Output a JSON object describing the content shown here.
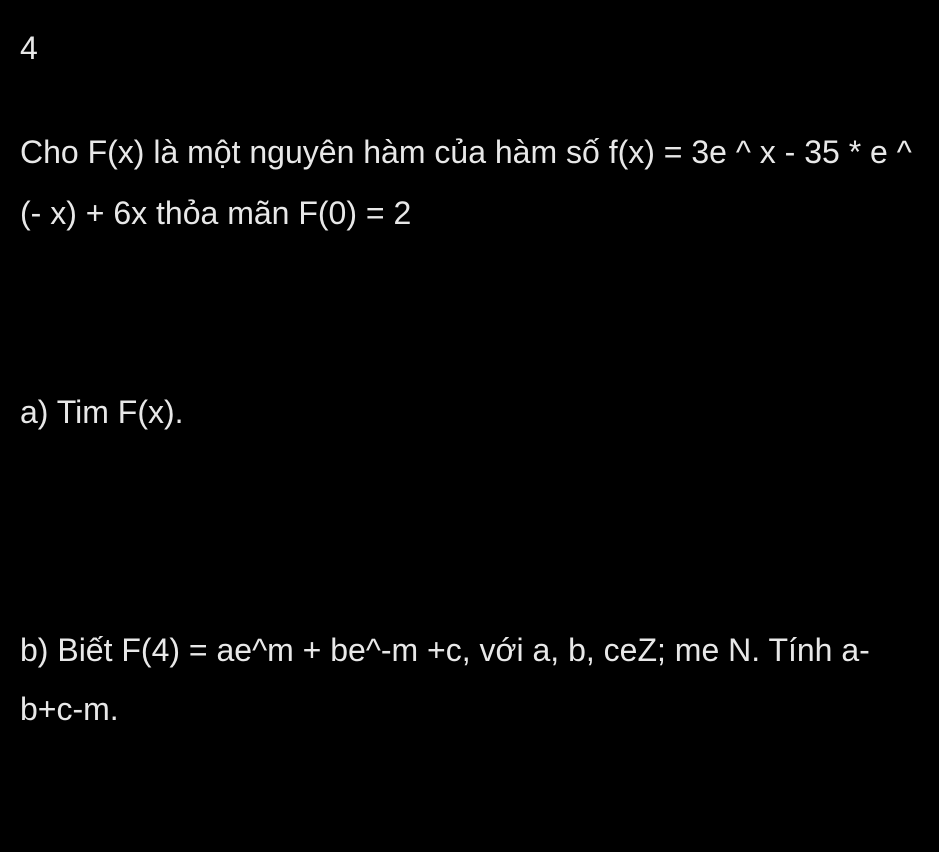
{
  "problem": {
    "number": "4",
    "statement": "Cho F(x) là một nguyên hàm của hàm số f(x) = 3e ^ x - 35 * e ^ (- x) + 6x thỏa mãn F(0) = 2",
    "part_a": "a) Tim F(x).",
    "part_b": "b) Biết F(4) = ae^m + be^-m +c, với a, b, ceZ; me N. Tính a-b+c-m."
  },
  "style": {
    "background_color": "#000000",
    "text_color": "#e8e8e8",
    "font_size": 32,
    "font_family": "Arial"
  }
}
